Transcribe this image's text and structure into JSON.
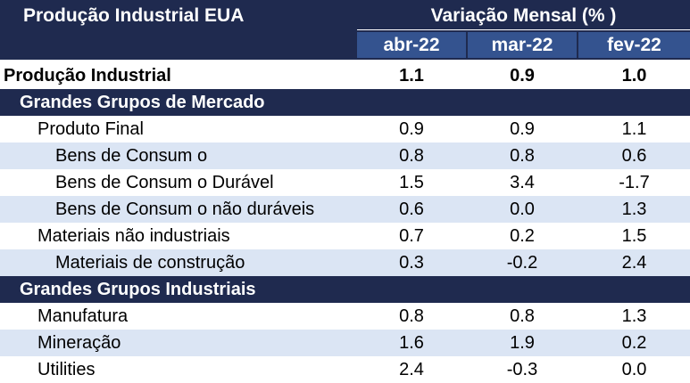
{
  "header": {
    "title": "Produção Industrial EUA",
    "group_label": "Variação Mensal (% )",
    "columns": [
      "abr-22",
      "mar-22",
      "fev-22"
    ]
  },
  "rows": [
    {
      "label": "Produção Industrial",
      "values": [
        "1.1",
        "0.9",
        "1.0"
      ]
    },
    {
      "label": "Grandes Grupos de Mercado"
    },
    {
      "label": "Produto Final",
      "values": [
        "0.9",
        "0.9",
        "1.1"
      ]
    },
    {
      "label": "Bens de Consum o",
      "values": [
        "0.8",
        "0.8",
        "0.6"
      ]
    },
    {
      "label": "Bens de Consum o Durável",
      "values": [
        "1.5",
        "3.4",
        "-1.7"
      ]
    },
    {
      "label": "Bens de Consum o não duráveis",
      "values": [
        "0.6",
        "0.0",
        "1.3"
      ]
    },
    {
      "label": "Materiais não industriais",
      "values": [
        "0.7",
        "0.2",
        "1.5"
      ]
    },
    {
      "label": "Materiais de construção",
      "values": [
        "0.3",
        "-0.2",
        "2.4"
      ]
    },
    {
      "label": "Grandes Grupos Industriais"
    },
    {
      "label": "Manufatura",
      "values": [
        "0.8",
        "0.8",
        "1.3"
      ]
    },
    {
      "label": "Mineração",
      "values": [
        "1.6",
        "1.9",
        "0.2"
      ]
    },
    {
      "label": "Utilities",
      "values": [
        "2.4",
        "-0.3",
        "0.0"
      ]
    }
  ],
  "colors": {
    "header_bg": "#1f2a4f",
    "column_header_bg": "#34538f",
    "row_shade": "#dbe5f4"
  }
}
